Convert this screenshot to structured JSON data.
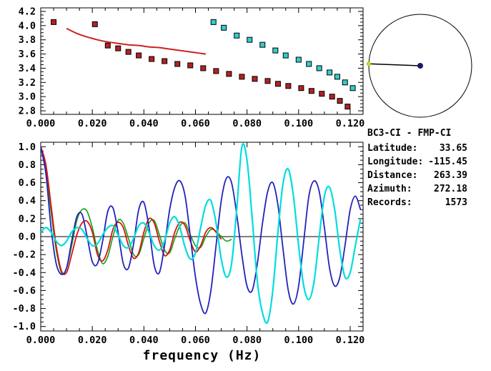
{
  "station_info": {
    "title": "BC3-CI - FMP-CI",
    "rows": [
      {
        "label": "Latitude:",
        "value": "33.65"
      },
      {
        "label": "Longitude:",
        "value": "-115.45"
      },
      {
        "label": "Distance:",
        "value": "263.39"
      },
      {
        "label": "Azimuth:",
        "value": "272.18"
      },
      {
        "label": "Records:",
        "value": "1573"
      }
    ]
  },
  "compass": {
    "azimuth_deg": 272.18,
    "circle_color": "#000000",
    "line_color": "#000000",
    "center_dot_color": "#1a1a66",
    "end_dot_color": "#d8d800"
  },
  "chart_data": [
    {
      "id": "dispersion",
      "type": "scatter",
      "title": "",
      "xlabel": "",
      "ylabel": "",
      "xlim": [
        0,
        0.125
      ],
      "ylim": [
        2.75,
        4.25
      ],
      "x_ticks": [
        0.0,
        0.02,
        0.04,
        0.06,
        0.08,
        0.1,
        0.12
      ],
      "x_tick_labels": [
        "0.000",
        "0.020",
        "0.040",
        "0.060",
        "0.080",
        "0.100",
        "0.120"
      ],
      "x_minor_step": 0.005,
      "y_ticks": [
        2.8,
        3.0,
        3.2,
        3.4,
        3.6,
        3.8,
        4.0,
        4.2
      ],
      "y_tick_labels": [
        "2.8",
        "3.0",
        "3.2",
        "3.4",
        "3.6",
        "3.8",
        "4.0",
        "4.2"
      ],
      "y_minor_step": 0.05,
      "grid": false,
      "series": [
        {
          "name": "dispersion-red-markers",
          "type": "scatter",
          "marker": "square",
          "color": "#b22222",
          "points": [
            [
              0.005,
              4.05
            ],
            [
              0.021,
              4.02
            ],
            [
              0.026,
              3.72
            ],
            [
              0.03,
              3.68
            ],
            [
              0.034,
              3.63
            ],
            [
              0.038,
              3.58
            ],
            [
              0.043,
              3.53
            ],
            [
              0.048,
              3.5
            ],
            [
              0.053,
              3.46
            ],
            [
              0.058,
              3.44
            ],
            [
              0.063,
              3.4
            ],
            [
              0.068,
              3.36
            ],
            [
              0.073,
              3.32
            ],
            [
              0.078,
              3.28
            ],
            [
              0.083,
              3.25
            ],
            [
              0.088,
              3.22
            ],
            [
              0.092,
              3.18
            ],
            [
              0.096,
              3.15
            ],
            [
              0.101,
              3.12
            ],
            [
              0.105,
              3.08
            ],
            [
              0.109,
              3.04
            ],
            [
              0.113,
              3.0
            ],
            [
              0.116,
              2.94
            ],
            [
              0.119,
              2.86
            ]
          ]
        },
        {
          "name": "dispersion-cyan-markers",
          "type": "scatter",
          "marker": "square",
          "color": "#35cccc",
          "points": [
            [
              0.067,
              4.05
            ],
            [
              0.071,
              3.97
            ],
            [
              0.076,
              3.86
            ],
            [
              0.081,
              3.8
            ],
            [
              0.086,
              3.73
            ],
            [
              0.091,
              3.65
            ],
            [
              0.095,
              3.58
            ],
            [
              0.1,
              3.52
            ],
            [
              0.104,
              3.46
            ],
            [
              0.108,
              3.4
            ],
            [
              0.112,
              3.34
            ],
            [
              0.115,
              3.28
            ],
            [
              0.118,
              3.2
            ],
            [
              0.121,
              3.12
            ]
          ]
        },
        {
          "name": "dispersion-red-line",
          "type": "line",
          "color": "#cc2222",
          "width": 2,
          "points": [
            [
              0.01,
              3.96
            ],
            [
              0.014,
              3.89
            ],
            [
              0.018,
              3.84
            ],
            [
              0.022,
              3.8
            ],
            [
              0.026,
              3.77
            ],
            [
              0.03,
              3.75
            ],
            [
              0.034,
              3.73
            ],
            [
              0.038,
              3.72
            ],
            [
              0.042,
              3.7
            ],
            [
              0.046,
              3.69
            ],
            [
              0.05,
              3.67
            ],
            [
              0.054,
              3.65
            ],
            [
              0.058,
              3.63
            ],
            [
              0.062,
              3.61
            ],
            [
              0.064,
              3.6
            ]
          ]
        }
      ]
    },
    {
      "id": "spectra",
      "type": "line",
      "title": "",
      "xlabel": "frequency (Hz)",
      "ylabel": "",
      "xlim": [
        0,
        0.125
      ],
      "ylim": [
        -1.05,
        1.05
      ],
      "x_ticks": [
        0.0,
        0.02,
        0.04,
        0.06,
        0.08,
        0.1,
        0.12
      ],
      "x_tick_labels": [
        "0.000",
        "0.020",
        "0.040",
        "0.060",
        "0.080",
        "0.100",
        "0.120"
      ],
      "x_minor_step": 0.005,
      "y_ticks": [
        -1.0,
        -0.8,
        -0.6,
        -0.4,
        -0.2,
        0.0,
        0.2,
        0.4,
        0.6,
        0.8,
        1.0
      ],
      "y_tick_labels": [
        "-1.0",
        "-0.8",
        "-0.6",
        "-0.4",
        "-0.2",
        "0.0",
        "0.2",
        "0.4",
        "0.6",
        "0.8",
        "1.0"
      ],
      "y_minor_step": 0.05,
      "zero_line": true,
      "grid": false,
      "series": [
        {
          "name": "waveform-green",
          "type": "line",
          "color": "#11a011",
          "width": 1.6,
          "x0": 0,
          "dx": 0.002,
          "values": [
            1.0,
            0.75,
            0.28,
            -0.15,
            -0.4,
            -0.35,
            -0.1,
            0.18,
            0.3,
            0.28,
            0.1,
            -0.15,
            -0.3,
            -0.22,
            0.0,
            0.18,
            0.15,
            -0.02,
            -0.2,
            -0.2,
            -0.02,
            0.15,
            0.18,
            0.02,
            -0.15,
            -0.18,
            -0.02,
            0.12,
            0.15,
            0.02,
            -0.1,
            -0.12,
            0.0,
            0.08,
            0.06,
            0.0,
            -0.05,
            -0.03
          ]
        },
        {
          "name": "waveform-red",
          "type": "line",
          "color": "#dd1111",
          "width": 1.8,
          "x0": 0,
          "dx": 0.002,
          "values": [
            1.0,
            0.8,
            0.35,
            -0.1,
            -0.38,
            -0.4,
            -0.2,
            0.02,
            0.15,
            0.17,
            0.05,
            -0.2,
            -0.27,
            -0.15,
            0.08,
            0.16,
            0.1,
            -0.1,
            -0.24,
            -0.18,
            0.05,
            0.2,
            0.15,
            -0.05,
            -0.21,
            -0.15,
            0.05,
            0.16,
            0.12,
            -0.05,
            -0.17,
            -0.1,
            0.05,
            0.1,
            0.05,
            -0.03
          ]
        },
        {
          "name": "waveform-blue",
          "type": "line",
          "color": "#2222bb",
          "width": 1.8,
          "x0": 0,
          "dx": 0.002,
          "values": [
            1.0,
            0.7,
            0.1,
            -0.3,
            -0.42,
            -0.35,
            -0.05,
            0.22,
            0.25,
            0.0,
            -0.28,
            -0.3,
            -0.05,
            0.28,
            0.32,
            0.05,
            -0.3,
            -0.35,
            -0.08,
            0.3,
            0.38,
            0.1,
            -0.32,
            -0.4,
            -0.1,
            0.3,
            0.55,
            0.62,
            0.45,
            0.0,
            -0.45,
            -0.75,
            -0.85,
            -0.6,
            -0.1,
            0.4,
            0.65,
            0.6,
            0.25,
            -0.2,
            -0.55,
            -0.6,
            -0.3,
            0.15,
            0.5,
            0.6,
            0.35,
            -0.15,
            -0.6,
            -0.75,
            -0.55,
            -0.05,
            0.45,
            0.62,
            0.5,
            0.1,
            -0.35,
            -0.55,
            -0.45,
            -0.1,
            0.3,
            0.45,
            0.3
          ]
        },
        {
          "name": "waveform-cyan",
          "type": "line",
          "color": "#00dddd",
          "width": 2.2,
          "x0": 0,
          "dx": 0.002,
          "values": [
            0.05,
            0.1,
            0.05,
            -0.05,
            -0.1,
            -0.05,
            0.05,
            0.1,
            0.08,
            -0.02,
            -0.1,
            -0.08,
            0.02,
            0.1,
            0.12,
            0.02,
            -0.1,
            -0.12,
            -0.02,
            0.12,
            0.15,
            0.05,
            -0.1,
            -0.15,
            -0.05,
            0.15,
            0.22,
            0.1,
            -0.12,
            -0.25,
            -0.18,
            0.1,
            0.35,
            0.4,
            0.15,
            -0.25,
            -0.45,
            -0.3,
            0.3,
            1.0,
            0.85,
            0.2,
            -0.5,
            -0.85,
            -0.95,
            -0.6,
            0.05,
            0.6,
            0.75,
            0.45,
            -0.1,
            -0.55,
            -0.7,
            -0.5,
            0.0,
            0.45,
            0.55,
            0.3,
            -0.15,
            -0.45,
            -0.4,
            -0.1,
            0.2
          ]
        }
      ]
    }
  ]
}
